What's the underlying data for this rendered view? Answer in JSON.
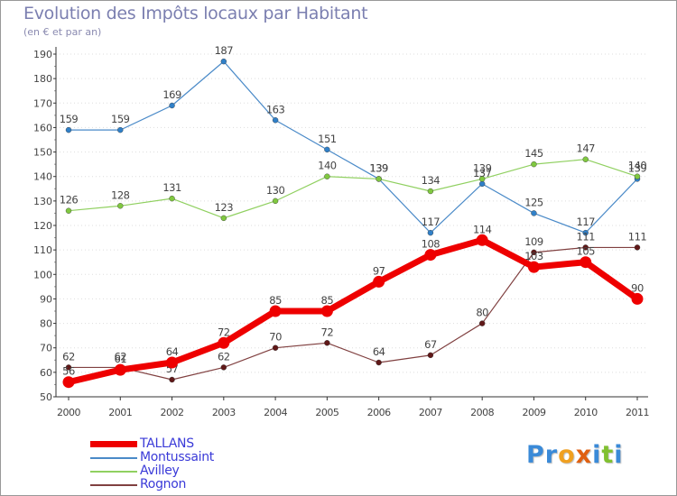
{
  "title": "Evolution des Impôts locaux par Habitant",
  "subtitle": "(en € et par an)",
  "logo": {
    "text": "Proxiti",
    "letters": [
      {
        "ch": "P",
        "color": "#3a8ad8"
      },
      {
        "ch": "r",
        "color": "#3a8ad8"
      },
      {
        "ch": "o",
        "color": "#f0a020"
      },
      {
        "ch": "x",
        "color": "#e06010"
      },
      {
        "ch": "i",
        "color": "#3a8ad8"
      },
      {
        "ch": "t",
        "color": "#80c030"
      },
      {
        "ch": "i",
        "color": "#3a8ad8"
      }
    ]
  },
  "chart_data": {
    "type": "line",
    "title": "Evolution des Impôts locaux par Habitant",
    "subtitle": "(en € et par an)",
    "x": [
      "2000",
      "2001",
      "2002",
      "2003",
      "2004",
      "2005",
      "2006",
      "2007",
      "2008",
      "2009",
      "2010",
      "2011"
    ],
    "ylim": [
      50,
      190
    ],
    "yticks": [
      50,
      60,
      70,
      80,
      90,
      100,
      110,
      120,
      130,
      140,
      150,
      160,
      170,
      180,
      190
    ],
    "grid": "horizontal-dotted",
    "legend_position": "bottom-left",
    "series": [
      {
        "name": "Montussaint",
        "color": "#4a8ac8",
        "marker": "#3080c8",
        "values": [
          159,
          159,
          169,
          187,
          163,
          151,
          139,
          117,
          137,
          125,
          117,
          139
        ]
      },
      {
        "name": "Avilley",
        "color": "#90d060",
        "marker": "#80c840",
        "values": [
          126,
          128,
          131,
          123,
          130,
          140,
          139,
          134,
          139,
          145,
          147,
          140
        ]
      },
      {
        "name": "Rognon",
        "color": "#804040",
        "marker": "#601818",
        "values": [
          62,
          62,
          57,
          62,
          70,
          72,
          64,
          67,
          80,
          109,
          111,
          111
        ]
      },
      {
        "name": "TALLANS",
        "color": "#ee0000",
        "marker": "#ee0000",
        "values": [
          56,
          61,
          64,
          72,
          85,
          85,
          97,
          108,
          114,
          103,
          105,
          90
        ]
      }
    ],
    "legend_order": [
      "TALLANS",
      "Montussaint",
      "Avilley",
      "Rognon"
    ]
  }
}
